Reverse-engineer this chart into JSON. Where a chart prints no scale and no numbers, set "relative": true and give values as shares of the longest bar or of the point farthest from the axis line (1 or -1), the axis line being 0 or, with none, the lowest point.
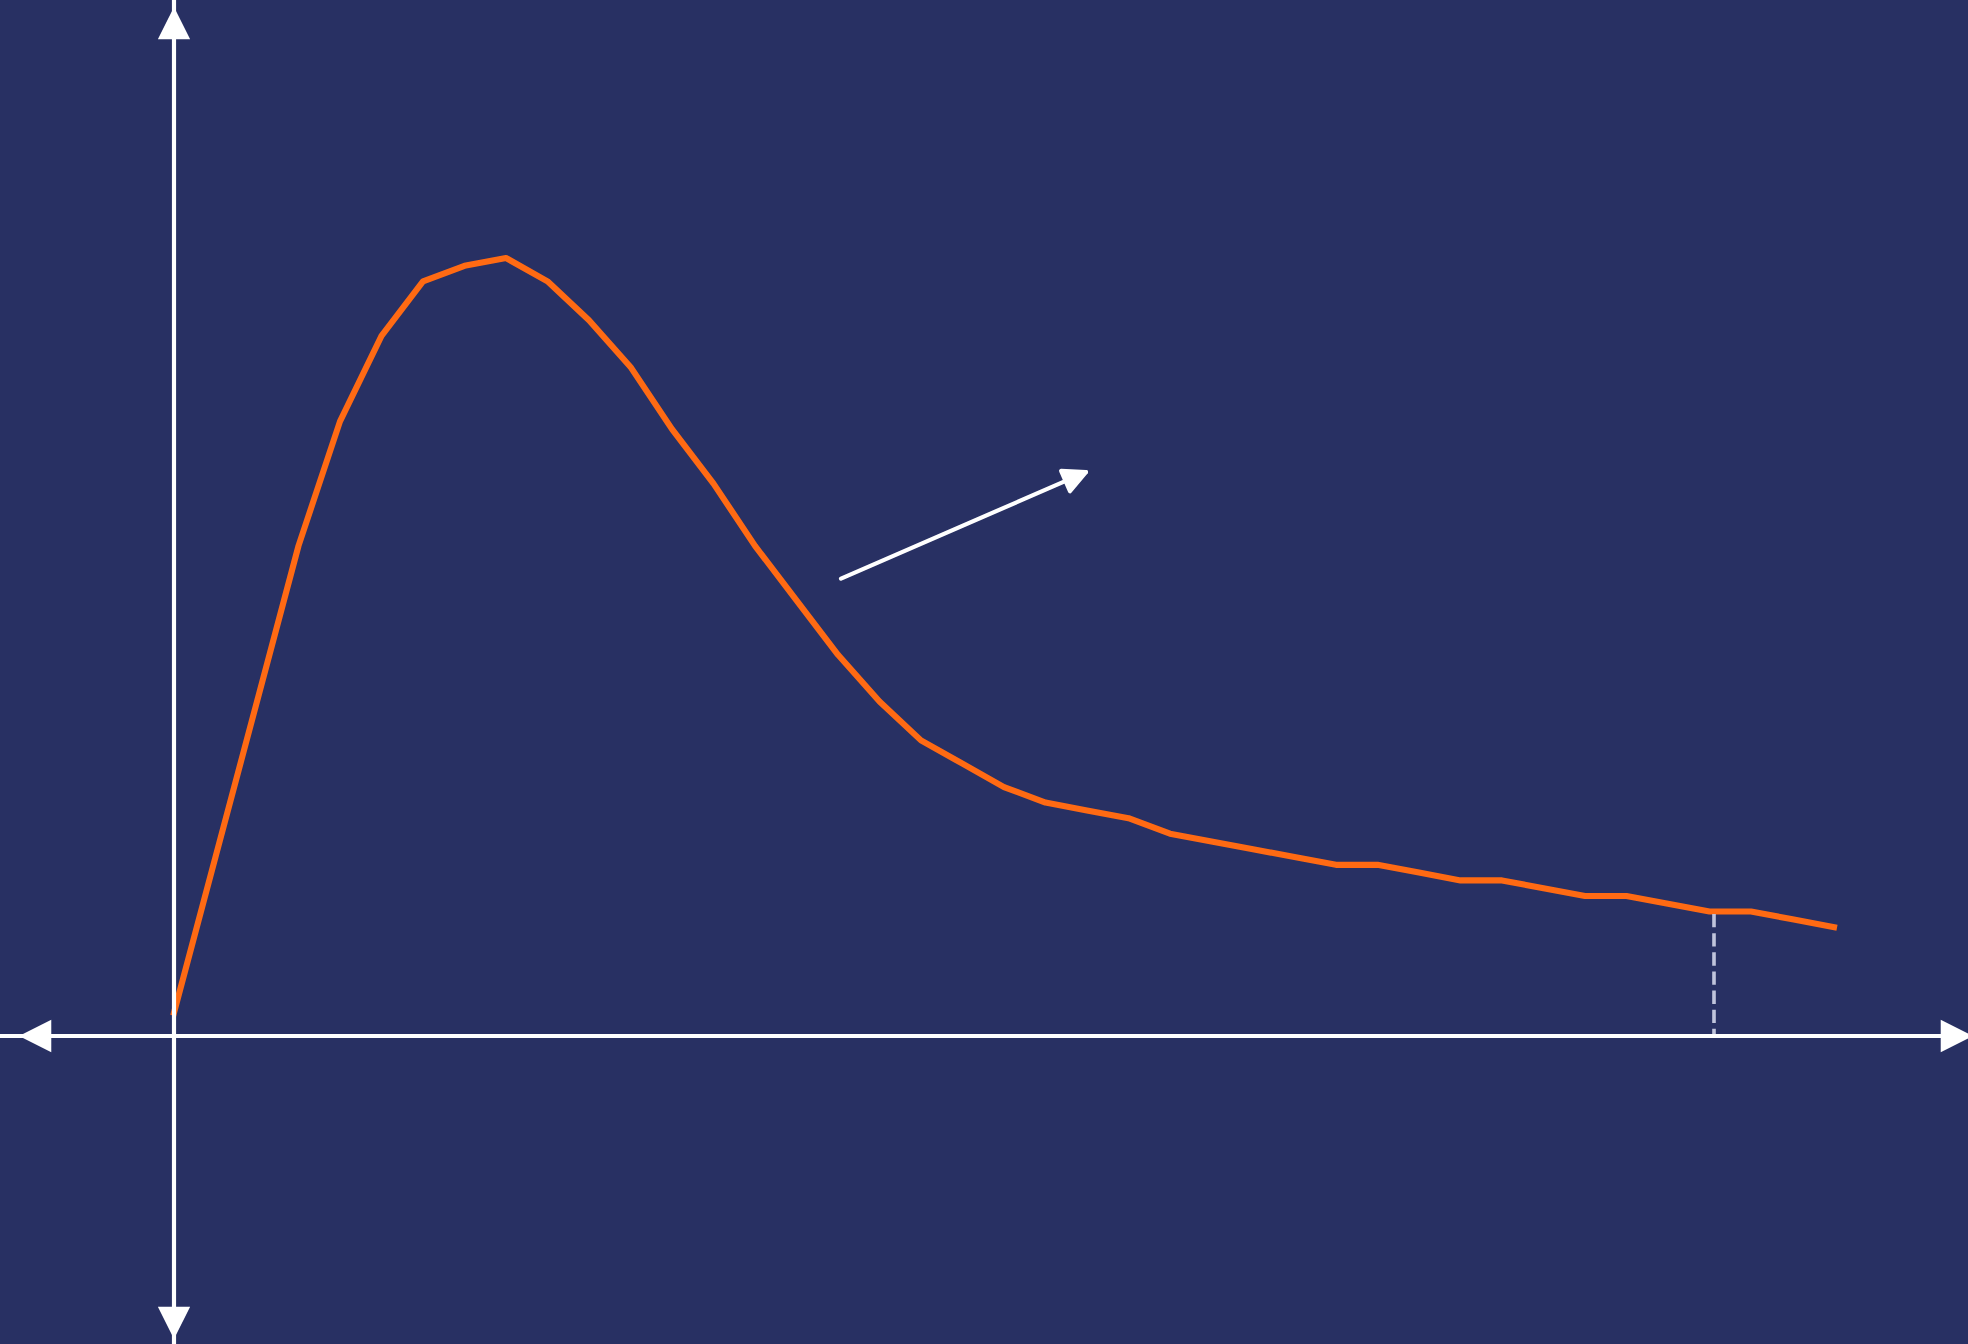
{
  "chart_data": {
    "type": "line",
    "relative": true,
    "categories": [
      null,
      null,
      null,
      null,
      null,
      null,
      null,
      null,
      null,
      null,
      null,
      null,
      null,
      null,
      null,
      null,
      null,
      null,
      null,
      null,
      null,
      null,
      null,
      null,
      null,
      null,
      null,
      null,
      null,
      null,
      null,
      null,
      null,
      null,
      null,
      null,
      null,
      null,
      null,
      null,
      null
    ],
    "series": [
      {
        "color": "#ff6a13",
        "values": [
          0.03,
          0.23,
          0.43,
          0.63,
          0.79,
          0.9,
          0.97,
          0.99,
          1,
          0.97,
          0.92,
          0.86,
          0.78,
          0.71,
          0.63,
          0.56,
          0.49,
          0.43,
          0.38,
          0.35,
          0.32,
          0.3,
          0.29,
          0.28,
          0.26,
          0.25,
          0.24,
          0.23,
          0.22,
          0.22,
          0.21,
          0.2,
          0.2,
          0.19,
          0.18,
          0.18,
          0.17,
          0.16,
          0.16,
          0.15,
          0.14
        ]
      }
    ],
    "marker": "none",
    "line_style": "solid",
    "grid": false,
    "legend": false
  }
}
